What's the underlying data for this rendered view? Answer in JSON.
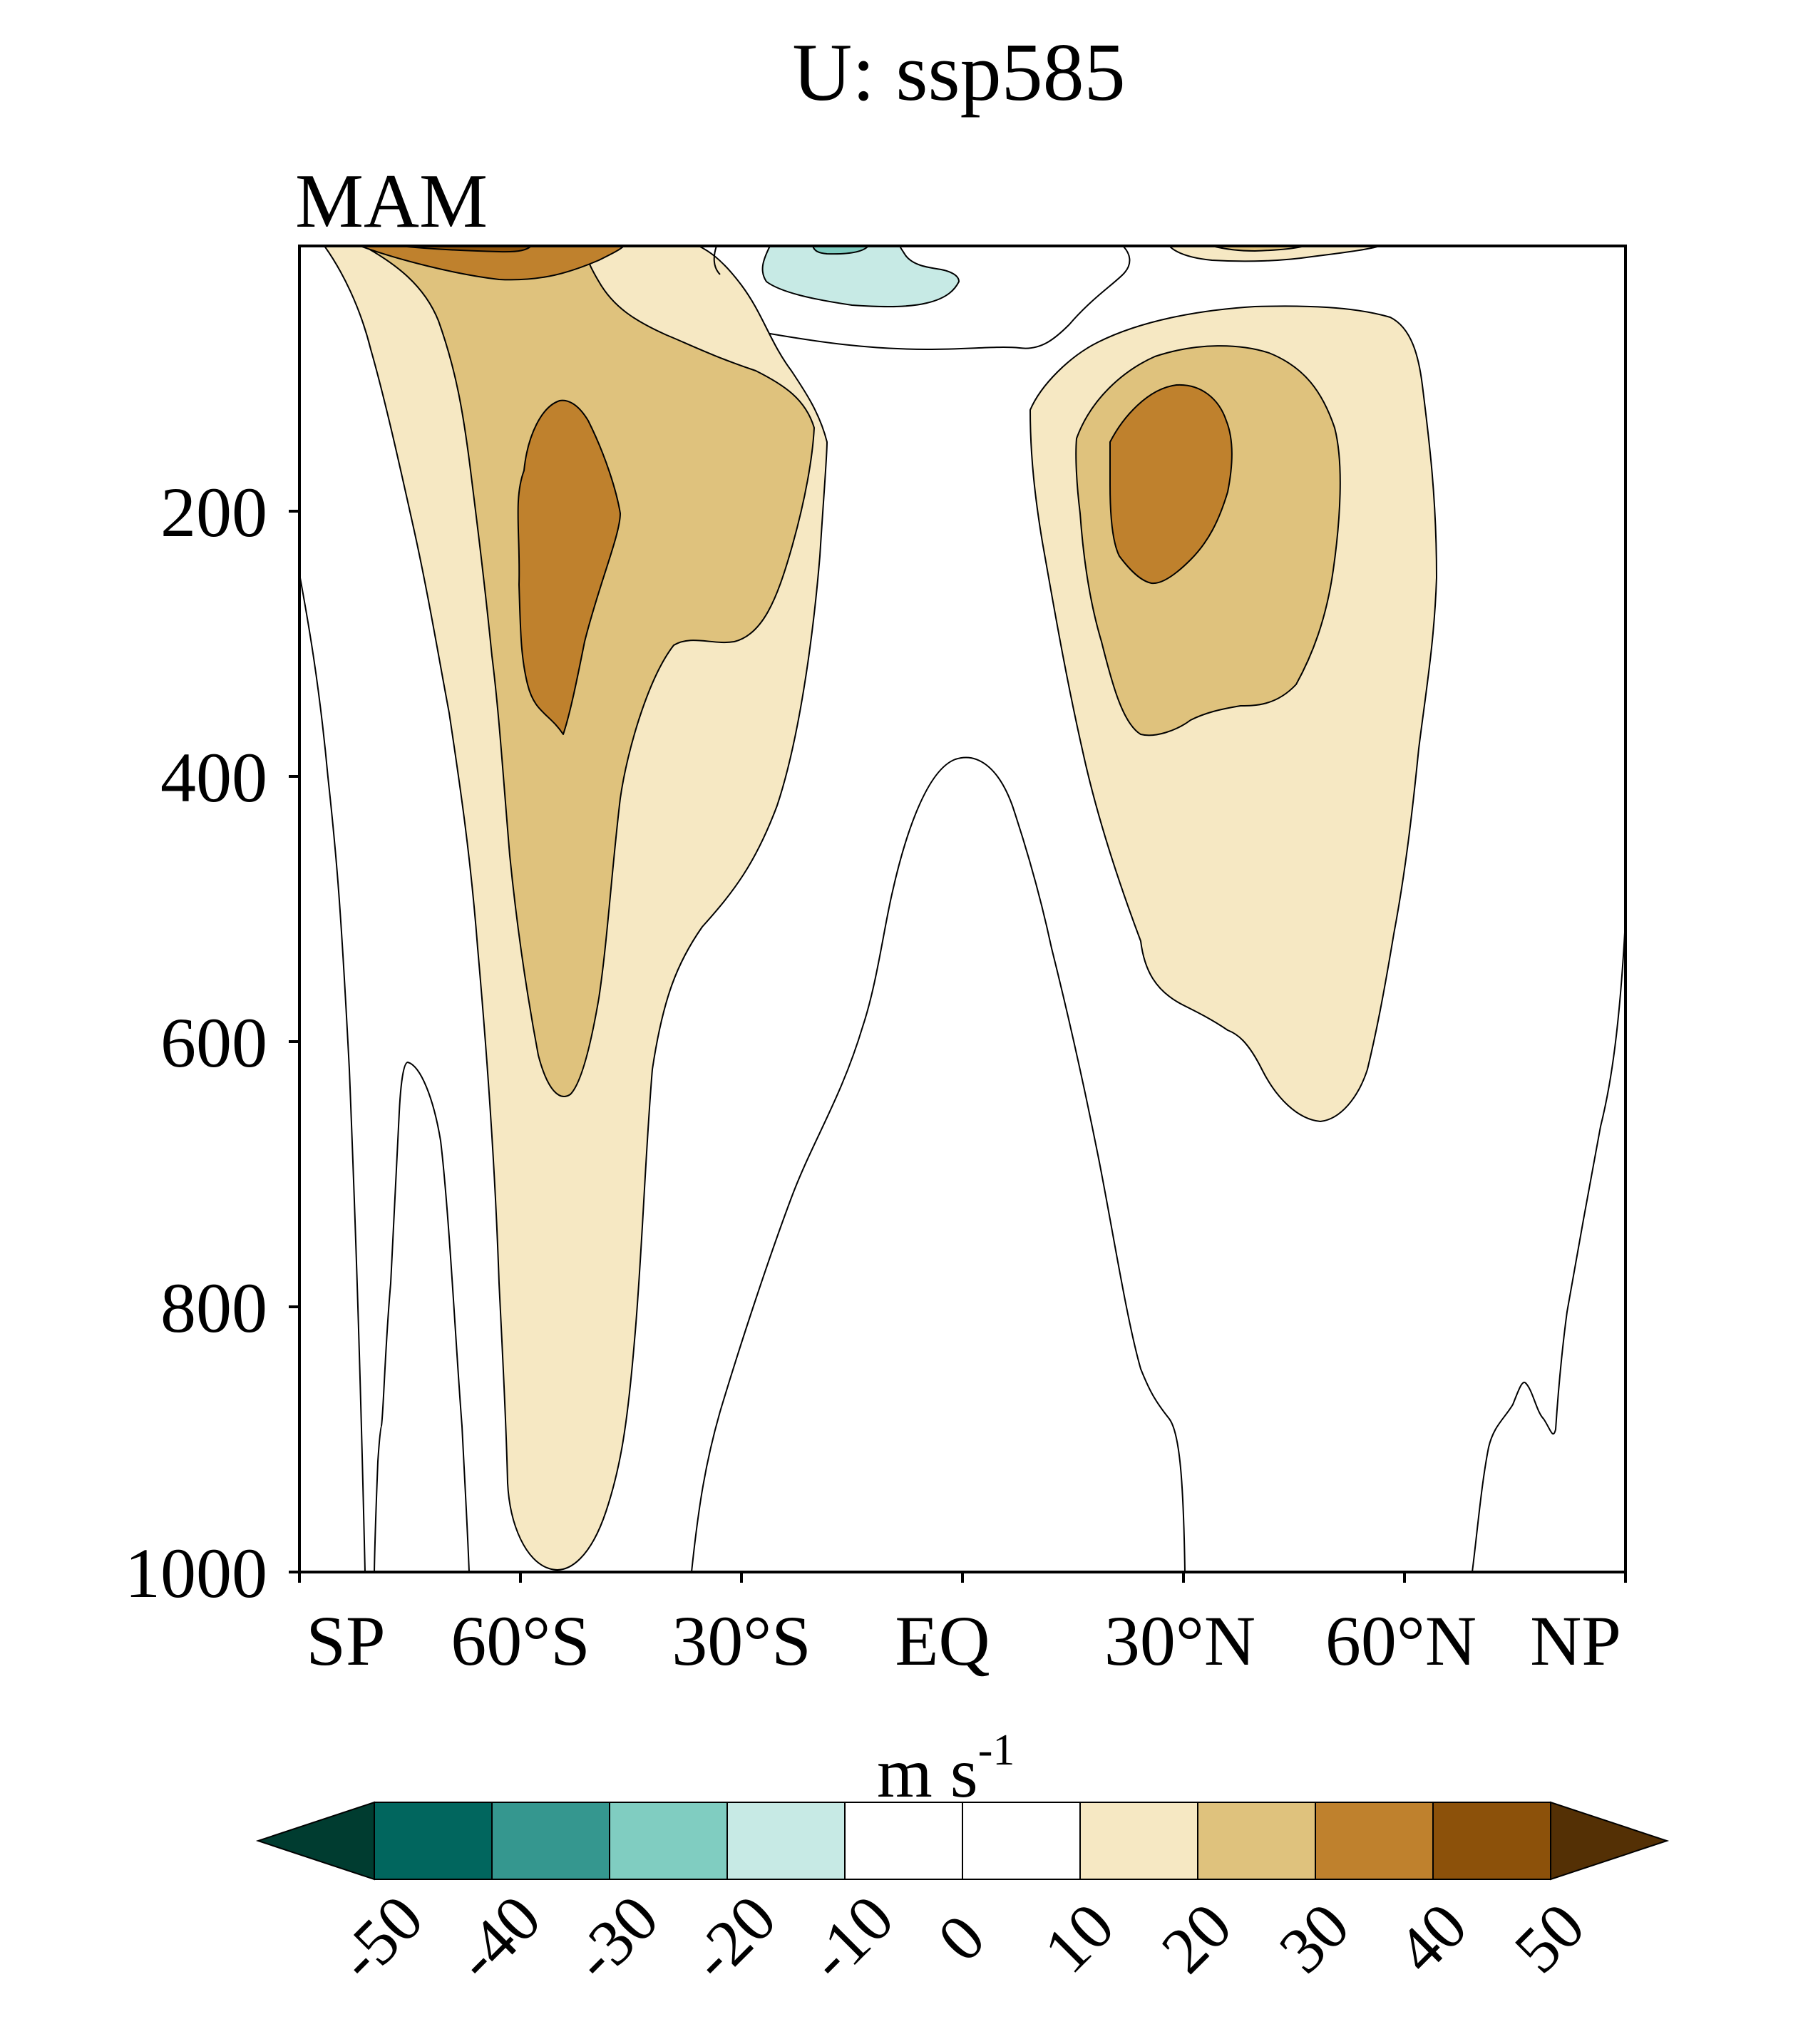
{
  "chart_data": {
    "type": "contour",
    "title": "U: ssp585",
    "subtitle": "MAM",
    "xlabel": "",
    "ylabel": "",
    "x_tick_labels": [
      "SP",
      "60°S",
      "30°S",
      "EQ",
      "30°N",
      "60°N",
      "NP"
    ],
    "x_tick_values": [
      -90,
      -60,
      -30,
      0,
      30,
      60,
      90
    ],
    "xlim": [
      -90,
      90
    ],
    "y_tick_labels": [
      "200",
      "400",
      "600",
      "800",
      "1000"
    ],
    "y_tick_values": [
      200,
      400,
      600,
      800,
      1000
    ],
    "ylim": [
      1000,
      0
    ],
    "colorbar": {
      "label_main": "m s",
      "label_sup": "-1",
      "levels": [
        "-50",
        "-40",
        "-30",
        "-20",
        "-10",
        "0",
        "10",
        "20",
        "30",
        "40",
        "50"
      ],
      "colors": [
        "#003c30",
        "#01665e",
        "#35978f",
        "#80cdc1",
        "#c7eae5",
        "#ffffff",
        "#ffffff",
        "#f6e8c3",
        "#dfc27d",
        "#bf812d",
        "#8c510a",
        "#543005"
      ]
    },
    "features": [
      {
        "name": "southern-hemisphere-jet",
        "max_speed_ms": "30-40",
        "latitude": -53,
        "pressure_hPa": 200
      },
      {
        "name": "northern-hemisphere-jet",
        "max_speed_ms": "30-40",
        "latitude": 32,
        "pressure_hPa": 180
      },
      {
        "name": "equatorial-easterlies",
        "min_speed_ms": "-20 to -10",
        "latitude": -5,
        "pressure_hPa": 10
      }
    ]
  }
}
